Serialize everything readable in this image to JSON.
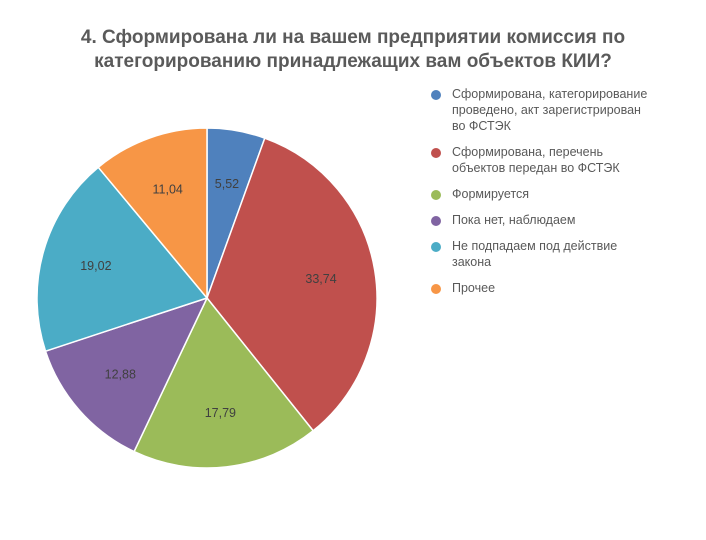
{
  "chart_data": {
    "type": "pie",
    "title_lines": [
      "4. Сформирована ли на вашем предприятии комиссия по",
      "категорированию принадлежащих вам объектов КИИ?"
    ],
    "categories": [
      "Сформирована, категорирование проведено, акт зарегистрирован во ФСТЭК",
      "Сформирована, перечень объектов передан во ФСТЭК",
      "Формируется",
      "Пока нет, наблюдаем",
      "Не подпадаем под действие закона",
      "Прочее"
    ],
    "legend_lines": [
      [
        "Сформирована, категорирование",
        "проведено, акт зарегистрирован",
        "во ФСТЭК"
      ],
      [
        "Сформирована, перечень",
        "объектов передан во ФСТЭК"
      ],
      [
        "Формируется"
      ],
      [
        "Пока нет, наблюдаем"
      ],
      [
        "Не подпадаем под действие",
        "закона"
      ],
      [
        "Прочее"
      ]
    ],
    "values": [
      5.52,
      33.74,
      17.79,
      12.88,
      19.02,
      11.04
    ],
    "labels": [
      "5,52",
      "33,74",
      "17,79",
      "12,88",
      "19,02",
      "11,04"
    ],
    "colors": [
      "#4f81bd",
      "#c0504d",
      "#9bbb59",
      "#8064a2",
      "#4bacc6",
      "#f79646"
    ],
    "start_angle": "12 o'clock",
    "direction": "clockwise",
    "legend_position": "right"
  }
}
